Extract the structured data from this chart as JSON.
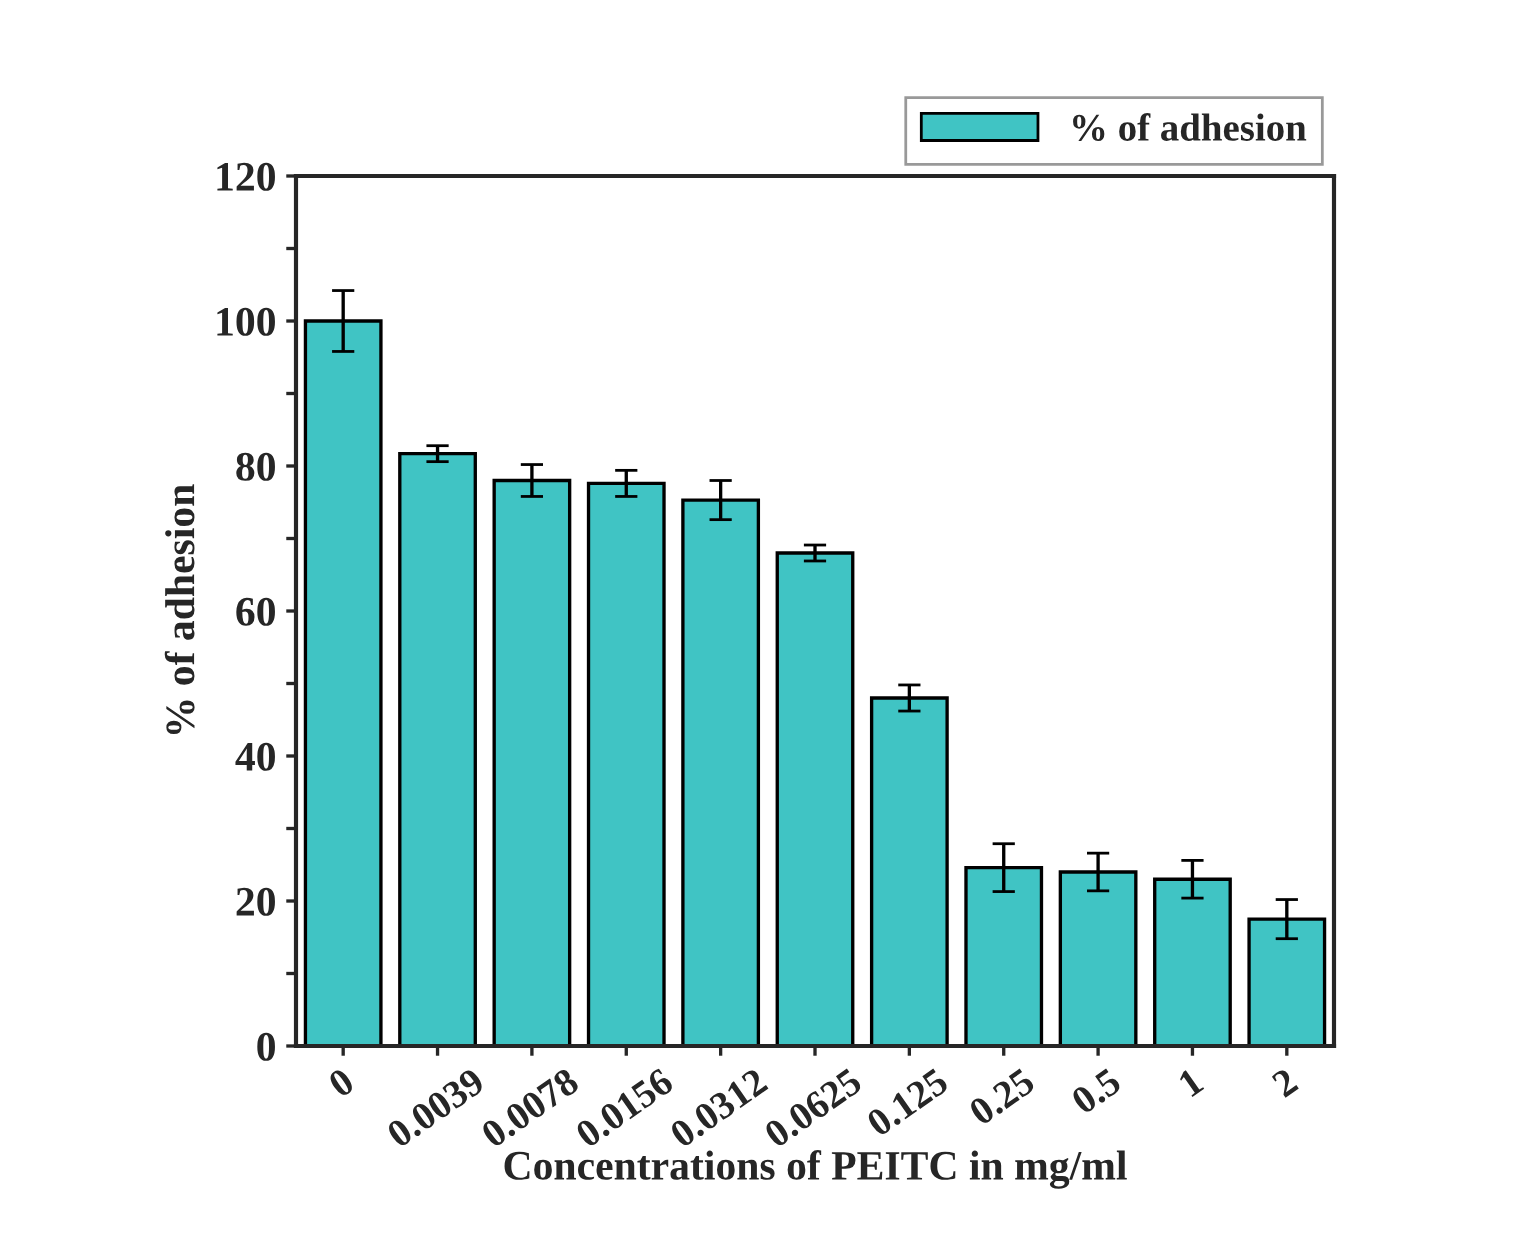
{
  "chart_data": {
    "type": "bar",
    "xlabel": "Concentrations of PEITC in mg/ml",
    "ylabel": "% of adhesion",
    "categories": [
      "0",
      "0.0039",
      "0.0078",
      "0.0156",
      "0.0312",
      "0.0625",
      "0.125",
      "0.25",
      "0.5",
      "1",
      "2"
    ],
    "series": [
      {
        "name": "% of adhesion",
        "color": "#40c4c4",
        "values": [
          100,
          81.7,
          78,
          77.6,
          75.3,
          68,
          48,
          24.6,
          24,
          23,
          17.5
        ],
        "errors": [
          4.2,
          1.1,
          2.2,
          1.8,
          2.7,
          1.1,
          1.8,
          3.3,
          2.6,
          2.6,
          2.7
        ]
      }
    ],
    "ylim": [
      0,
      120
    ],
    "yticks": [
      0,
      {
        "value": 10,
        "label": null
      },
      20,
      {
        "value": 30,
        "label": null
      },
      40,
      {
        "value": 50,
        "label": null
      },
      60,
      {
        "value": 70,
        "label": null
      },
      80,
      {
        "value": 90,
        "label": null
      },
      100,
      {
        "value": 110,
        "label": null
      },
      120
    ],
    "grid": false,
    "legend": "top right"
  }
}
